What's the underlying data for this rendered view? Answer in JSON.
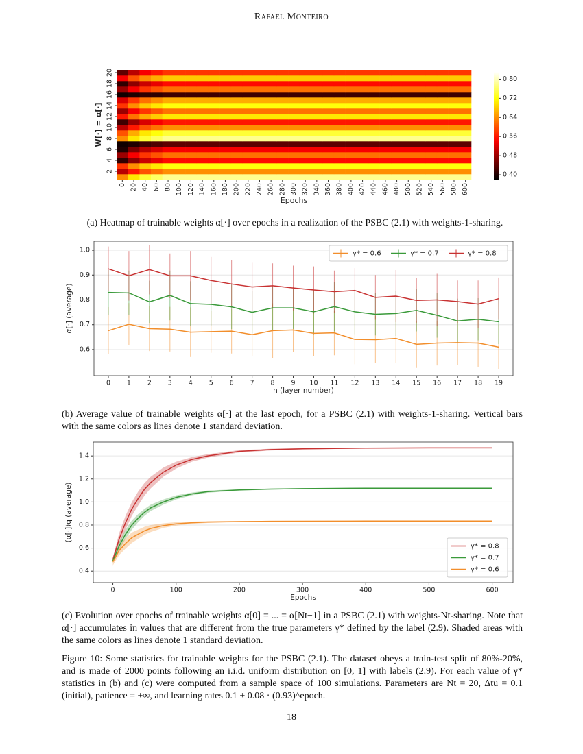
{
  "header": "Rafael Monteiro",
  "chart_data": [
    {
      "type": "heatmap",
      "xlabel": "Epochs",
      "ylabel": "W[·] = α[·]",
      "categories": [
        "0",
        "20",
        "40",
        "60",
        "80",
        "100",
        "120",
        "140",
        "160",
        "180",
        "200",
        "220",
        "240",
        "260",
        "280",
        "300",
        "320",
        "340",
        "360",
        "380",
        "400",
        "420",
        "440",
        "460",
        "480",
        "500",
        "520",
        "540",
        "560",
        "580",
        "600"
      ],
      "y_categories": [
        null,
        "2",
        null,
        "4",
        null,
        "6",
        null,
        "8",
        null,
        "10",
        null,
        "12",
        null,
        "14",
        null,
        "16",
        null,
        "18",
        null,
        "20"
      ],
      "colormap": "hot",
      "clim": [
        0.38,
        0.83
      ],
      "cticks": [
        {
          "value": 0.4,
          "label": "0.40"
        },
        {
          "value": 0.48,
          "label": "0.48"
        },
        {
          "value": 0.56,
          "label": "0.56"
        },
        {
          "value": 0.64,
          "label": "0.64"
        },
        {
          "value": 0.72,
          "label": "0.72"
        },
        {
          "value": 0.8,
          "label": "0.80"
        }
      ],
      "values": [
        [
          0.64,
          0.7,
          0.74,
          0.76,
          0.78,
          0.78,
          0.78,
          0.78,
          0.78,
          0.78,
          0.78,
          0.78,
          0.78,
          0.78,
          0.78,
          0.78,
          0.78,
          0.78,
          0.78,
          0.78,
          0.78,
          0.78,
          0.78,
          0.78,
          0.78,
          0.78,
          0.78,
          0.78,
          0.78,
          0.78,
          0.78
        ],
        [
          0.5,
          0.56,
          0.6,
          0.62,
          0.64,
          0.64,
          0.64,
          0.64,
          0.64,
          0.64,
          0.64,
          0.64,
          0.64,
          0.64,
          0.64,
          0.64,
          0.64,
          0.64,
          0.64,
          0.64,
          0.64,
          0.64,
          0.64,
          0.64,
          0.64,
          0.64,
          0.64,
          0.64,
          0.64,
          0.64,
          0.64
        ],
        [
          0.58,
          0.64,
          0.68,
          0.7,
          0.72,
          0.72,
          0.72,
          0.72,
          0.72,
          0.72,
          0.72,
          0.72,
          0.72,
          0.72,
          0.72,
          0.72,
          0.72,
          0.72,
          0.72,
          0.72,
          0.72,
          0.72,
          0.72,
          0.72,
          0.72,
          0.72,
          0.72,
          0.72,
          0.72,
          0.72,
          0.72
        ],
        [
          0.41,
          0.47,
          0.51,
          0.53,
          0.55,
          0.55,
          0.55,
          0.55,
          0.55,
          0.55,
          0.55,
          0.55,
          0.55,
          0.55,
          0.55,
          0.55,
          0.55,
          0.55,
          0.55,
          0.55,
          0.55,
          0.55,
          0.55,
          0.55,
          0.55,
          0.55,
          0.55,
          0.55,
          0.55,
          0.55,
          0.55
        ],
        [
          0.48,
          0.54,
          0.58,
          0.6,
          0.62,
          0.62,
          0.62,
          0.62,
          0.62,
          0.62,
          0.62,
          0.62,
          0.62,
          0.62,
          0.62,
          0.62,
          0.62,
          0.62,
          0.62,
          0.62,
          0.62,
          0.62,
          0.62,
          0.62,
          0.62,
          0.62,
          0.62,
          0.62,
          0.62,
          0.62,
          0.62
        ],
        [
          0.4,
          0.46,
          0.5,
          0.52,
          0.54,
          0.54,
          0.54,
          0.54,
          0.54,
          0.54,
          0.54,
          0.54,
          0.54,
          0.54,
          0.54,
          0.54,
          0.54,
          0.54,
          0.54,
          0.54,
          0.54,
          0.54,
          0.54,
          0.54,
          0.54,
          0.54,
          0.54,
          0.54,
          0.54,
          0.54,
          0.54
        ],
        [
          0.39,
          0.4,
          0.42,
          0.43,
          0.44,
          0.44,
          0.44,
          0.44,
          0.44,
          0.44,
          0.44,
          0.44,
          0.44,
          0.44,
          0.44,
          0.44,
          0.44,
          0.44,
          0.44,
          0.44,
          0.44,
          0.44,
          0.44,
          0.44,
          0.44,
          0.44,
          0.44,
          0.44,
          0.44,
          0.44,
          0.44
        ],
        [
          0.64,
          0.7,
          0.74,
          0.76,
          0.78,
          0.78,
          0.78,
          0.78,
          0.78,
          0.78,
          0.78,
          0.78,
          0.78,
          0.78,
          0.78,
          0.78,
          0.78,
          0.78,
          0.78,
          0.78,
          0.78,
          0.78,
          0.78,
          0.78,
          0.78,
          0.78,
          0.78,
          0.78,
          0.78,
          0.78,
          0.78
        ],
        [
          0.6,
          0.66,
          0.7,
          0.72,
          0.74,
          0.74,
          0.74,
          0.74,
          0.74,
          0.74,
          0.74,
          0.74,
          0.74,
          0.74,
          0.74,
          0.74,
          0.74,
          0.74,
          0.74,
          0.74,
          0.74,
          0.74,
          0.74,
          0.74,
          0.74,
          0.74,
          0.74,
          0.74,
          0.74,
          0.74,
          0.74
        ],
        [
          0.5,
          0.56,
          0.6,
          0.62,
          0.64,
          0.64,
          0.64,
          0.64,
          0.64,
          0.64,
          0.64,
          0.64,
          0.64,
          0.64,
          0.64,
          0.64,
          0.64,
          0.64,
          0.64,
          0.64,
          0.64,
          0.64,
          0.64,
          0.64,
          0.64,
          0.64,
          0.64,
          0.64,
          0.64,
          0.64,
          0.64
        ],
        [
          0.42,
          0.48,
          0.52,
          0.54,
          0.56,
          0.56,
          0.56,
          0.56,
          0.56,
          0.56,
          0.56,
          0.56,
          0.56,
          0.56,
          0.56,
          0.56,
          0.56,
          0.56,
          0.56,
          0.56,
          0.56,
          0.56,
          0.56,
          0.56,
          0.56,
          0.56,
          0.56,
          0.56,
          0.56,
          0.56,
          0.56
        ],
        [
          0.56,
          0.62,
          0.66,
          0.68,
          0.7,
          0.7,
          0.7,
          0.7,
          0.7,
          0.7,
          0.7,
          0.7,
          0.7,
          0.7,
          0.7,
          0.7,
          0.7,
          0.7,
          0.7,
          0.7,
          0.7,
          0.7,
          0.7,
          0.7,
          0.7,
          0.7,
          0.7,
          0.7,
          0.7,
          0.7,
          0.7
        ],
        [
          0.48,
          0.54,
          0.58,
          0.6,
          0.62,
          0.62,
          0.62,
          0.62,
          0.62,
          0.62,
          0.62,
          0.62,
          0.62,
          0.62,
          0.62,
          0.62,
          0.62,
          0.62,
          0.62,
          0.62,
          0.62,
          0.62,
          0.62,
          0.62,
          0.62,
          0.62,
          0.62,
          0.62,
          0.62,
          0.62,
          0.62
        ],
        [
          0.58,
          0.64,
          0.68,
          0.7,
          0.72,
          0.72,
          0.72,
          0.72,
          0.72,
          0.72,
          0.72,
          0.72,
          0.72,
          0.72,
          0.72,
          0.72,
          0.72,
          0.72,
          0.72,
          0.72,
          0.72,
          0.72,
          0.72,
          0.72,
          0.72,
          0.72,
          0.72,
          0.72,
          0.72,
          0.72,
          0.72
        ],
        [
          0.52,
          0.58,
          0.62,
          0.64,
          0.66,
          0.66,
          0.66,
          0.66,
          0.66,
          0.66,
          0.66,
          0.66,
          0.66,
          0.66,
          0.66,
          0.66,
          0.66,
          0.66,
          0.66,
          0.66,
          0.66,
          0.66,
          0.66,
          0.66,
          0.66,
          0.66,
          0.66,
          0.66,
          0.66,
          0.66,
          0.66
        ],
        [
          0.39,
          0.4,
          0.41,
          0.41,
          0.42,
          0.42,
          0.42,
          0.42,
          0.42,
          0.42,
          0.42,
          0.42,
          0.42,
          0.42,
          0.42,
          0.42,
          0.42,
          0.42,
          0.42,
          0.42,
          0.42,
          0.42,
          0.42,
          0.42,
          0.42,
          0.42,
          0.42,
          0.42,
          0.42,
          0.42,
          0.42
        ],
        [
          0.48,
          0.54,
          0.58,
          0.6,
          0.62,
          0.62,
          0.62,
          0.62,
          0.62,
          0.62,
          0.62,
          0.62,
          0.62,
          0.62,
          0.62,
          0.62,
          0.62,
          0.62,
          0.62,
          0.62,
          0.62,
          0.62,
          0.62,
          0.62,
          0.62,
          0.62,
          0.62,
          0.62,
          0.62,
          0.62,
          0.62
        ],
        [
          0.41,
          0.47,
          0.51,
          0.53,
          0.55,
          0.55,
          0.55,
          0.55,
          0.55,
          0.55,
          0.55,
          0.55,
          0.55,
          0.55,
          0.55,
          0.55,
          0.55,
          0.55,
          0.55,
          0.55,
          0.55,
          0.55,
          0.55,
          0.55,
          0.55,
          0.55,
          0.55,
          0.55,
          0.55,
          0.55,
          0.55
        ],
        [
          0.54,
          0.6,
          0.64,
          0.66,
          0.68,
          0.68,
          0.68,
          0.68,
          0.68,
          0.68,
          0.68,
          0.68,
          0.68,
          0.68,
          0.68,
          0.68,
          0.68,
          0.68,
          0.68,
          0.68,
          0.68,
          0.68,
          0.68,
          0.68,
          0.68,
          0.68,
          0.68,
          0.68,
          0.68,
          0.68,
          0.68
        ],
        [
          0.44,
          0.5,
          0.54,
          0.56,
          0.58,
          0.58,
          0.58,
          0.58,
          0.58,
          0.58,
          0.58,
          0.58,
          0.58,
          0.58,
          0.58,
          0.58,
          0.58,
          0.58,
          0.58,
          0.58,
          0.58,
          0.58,
          0.58,
          0.58,
          0.58,
          0.58,
          0.58,
          0.58,
          0.58,
          0.58,
          0.58
        ]
      ]
    },
    {
      "type": "line",
      "xlabel": "n (layer number)",
      "ylabel": "α[·] (average)",
      "x": [
        0,
        1,
        2,
        3,
        4,
        5,
        6,
        7,
        8,
        9,
        10,
        11,
        12,
        13,
        14,
        15,
        16,
        17,
        18,
        19
      ],
      "xlim": [
        -0.7,
        19.7
      ],
      "xticks": [
        0,
        1,
        2,
        3,
        4,
        5,
        6,
        7,
        8,
        9,
        10,
        11,
        12,
        13,
        14,
        15,
        16,
        17,
        18,
        19
      ],
      "ylim": [
        0.495,
        1.036
      ],
      "yticks": [
        0.6,
        0.7,
        0.8,
        0.9,
        {
          "value": 1,
          "label": "1.0"
        }
      ],
      "grid": true,
      "legend": "upper right",
      "legend_columns": 3,
      "error_display": "bars",
      "series": [
        {
          "name": "γ* = 0.6",
          "color": "#f28e2b",
          "values": [
            0.676,
            0.702,
            0.684,
            0.682,
            0.67,
            0.672,
            0.674,
            0.66,
            0.676,
            0.679,
            0.665,
            0.667,
            0.641,
            0.64,
            0.645,
            0.621,
            0.626,
            0.628,
            0.626,
            0.61
          ],
          "std": [
            0.095,
            0.085,
            0.09,
            0.09,
            0.1,
            0.085,
            0.09,
            0.085,
            0.11,
            0.09,
            0.09,
            0.09,
            0.1,
            0.095,
            0.1,
            0.095,
            0.09,
            0.09,
            0.095,
            0.09
          ]
        },
        {
          "name": "γ* = 0.7",
          "color": "#3a9a3a",
          "values": [
            0.83,
            0.828,
            0.792,
            0.818,
            0.785,
            0.782,
            0.772,
            0.75,
            0.768,
            0.768,
            0.752,
            0.773,
            0.752,
            0.742,
            0.745,
            0.758,
            0.738,
            0.715,
            0.722,
            0.712
          ],
          "std": [
            0.09,
            0.09,
            0.085,
            0.1,
            0.09,
            0.085,
            0.09,
            0.085,
            0.09,
            0.085,
            0.09,
            0.1,
            0.09,
            0.085,
            0.09,
            0.085,
            0.09,
            0.09,
            0.085,
            0.09
          ]
        },
        {
          "name": "γ* = 0.8",
          "color": "#c83232",
          "values": [
            0.925,
            0.897,
            0.922,
            0.897,
            0.897,
            0.878,
            0.864,
            0.852,
            0.857,
            0.848,
            0.84,
            0.833,
            0.838,
            0.81,
            0.815,
            0.798,
            0.8,
            0.793,
            0.783,
            0.805
          ],
          "std": [
            0.09,
            0.1,
            0.1,
            0.09,
            0.1,
            0.095,
            0.095,
            0.1,
            0.09,
            0.09,
            0.095,
            0.085,
            0.09,
            0.09,
            0.105,
            0.09,
            0.105,
            0.085,
            0.095,
            0.085
          ]
        }
      ]
    },
    {
      "type": "line",
      "xlabel": "Epochs",
      "ylabel": "(α[·])q (average)",
      "x": [
        0,
        10,
        20,
        30,
        40,
        50,
        60,
        80,
        100,
        125,
        150,
        200,
        250,
        300,
        400,
        500,
        600
      ],
      "xlim": [
        -31,
        633
      ],
      "xticks": [
        0,
        100,
        200,
        300,
        400,
        500,
        600
      ],
      "ylim": [
        0.3,
        1.52
      ],
      "yticks": [
        0.4,
        0.6,
        0.8,
        {
          "value": 1,
          "label": "1.0"
        },
        1.2,
        1.4
      ],
      "grid": true,
      "legend": "lower right",
      "legend_columns": 1,
      "error_display": "band",
      "series": [
        {
          "name": "γ* = 0.8",
          "color": "#c83232",
          "values": [
            0.5,
            0.68,
            0.82,
            0.94,
            1.03,
            1.11,
            1.17,
            1.26,
            1.32,
            1.37,
            1.4,
            1.44,
            1.455,
            1.462,
            1.468,
            1.47,
            1.47
          ],
          "std": [
            0.02,
            0.05,
            0.06,
            0.06,
            0.06,
            0.055,
            0.05,
            0.04,
            0.03,
            0.02,
            0.015,
            0.01,
            0.008,
            0.005,
            0.004,
            0.004,
            0.004
          ]
        },
        {
          "name": "γ* = 0.7",
          "color": "#3a9a3a",
          "values": [
            0.49,
            0.62,
            0.72,
            0.8,
            0.86,
            0.91,
            0.95,
            1.0,
            1.04,
            1.07,
            1.09,
            1.105,
            1.112,
            1.116,
            1.12,
            1.12,
            1.12
          ],
          "std": [
            0.02,
            0.035,
            0.04,
            0.04,
            0.035,
            0.03,
            0.028,
            0.022,
            0.018,
            0.012,
            0.01,
            0.006,
            0.005,
            0.004,
            0.003,
            0.003,
            0.003
          ]
        },
        {
          "name": "γ* = 0.6",
          "color": "#f28e2b",
          "values": [
            0.48,
            0.58,
            0.64,
            0.69,
            0.72,
            0.75,
            0.77,
            0.795,
            0.81,
            0.82,
            0.826,
            0.83,
            0.832,
            0.833,
            0.834,
            0.834,
            0.834
          ],
          "std": [
            0.03,
            0.04,
            0.045,
            0.045,
            0.04,
            0.035,
            0.03,
            0.02,
            0.015,
            0.01,
            0.008,
            0.005,
            0.004,
            0.003,
            0.003,
            0.003,
            0.003
          ]
        }
      ]
    }
  ],
  "captions": [
    "(a) Heatmap of trainable weights α[·] over epochs in a realization of the PSBC (2.1) with weights-1-sharing.",
    "(b) Average value of trainable weights α[·] at the last epoch, for a PSBC (2.1) with weights-1-sharing. Vertical bars with the same colors as lines denote 1 standard deviation.",
    "(c) Evolution over epochs of trainable weights α[0] = ... = α[Nt−1] in a PSBC (2.1) with weights-Nt-sharing. Note that α[·] accumulates in values that are different from the true parameters γ* defined by the label (2.9). Shaded areas with the same colors as lines denote 1 standard deviation."
  ],
  "figure_caption": "Figure 10: Some statistics for trainable weights for the PSBC (2.1). The dataset obeys a train-test split of 80%-20%, and is made of 2000 points following an i.i.d. uniform distribution on [0, 1] with labels (2.9). For each value of γ* statistics in (b) and (c) were computed from a sample space of 100 simulations. Parameters are Nt = 20, Δtu = 0.1 (initial), patience = +∞, and learning rates 0.1 + 0.08 · (0.93)^epoch.",
  "page_number": "18"
}
